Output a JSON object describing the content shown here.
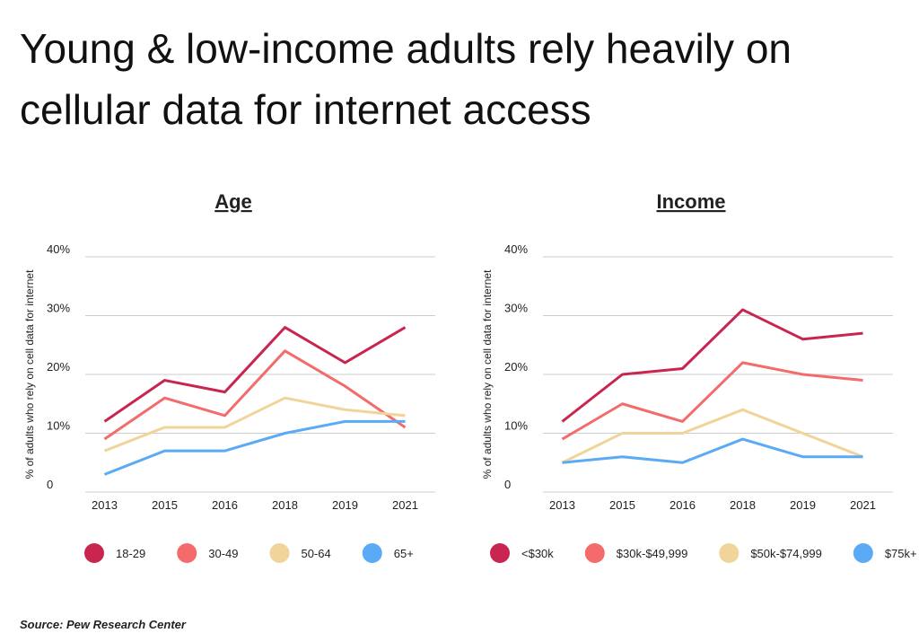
{
  "title": "Young & low-income adults rely heavily on cellular data for internet access",
  "source": "Source:  Pew Research Center",
  "chart_data": [
    {
      "type": "line",
      "title": "Age",
      "y_label": "% of adults who rely on cell data for internet",
      "categories": [
        "2013",
        "2015",
        "2016",
        "2018",
        "2019",
        "2021"
      ],
      "ylim": [
        0,
        40
      ],
      "yticks": [
        {
          "value": 0,
          "label": "0"
        },
        {
          "value": 10,
          "label": "10%"
        },
        {
          "value": 20,
          "label": "20%"
        },
        {
          "value": 30,
          "label": "30%"
        },
        {
          "value": 40,
          "label": "40%"
        }
      ],
      "grid": true,
      "series": [
        {
          "name": "18-29",
          "color": "#c8254f",
          "values": [
            12,
            19,
            17,
            28,
            22,
            28
          ]
        },
        {
          "name": "30-49",
          "color": "#f36b6b",
          "values": [
            9,
            16,
            13,
            24,
            18,
            11
          ]
        },
        {
          "name": "50-64",
          "color": "#f0d49a",
          "values": [
            7,
            11,
            11,
            16,
            14,
            13
          ]
        },
        {
          "name": "65+",
          "color": "#5aaaf5",
          "values": [
            3,
            7,
            7,
            10,
            12,
            12
          ]
        }
      ]
    },
    {
      "type": "line",
      "title": "Income",
      "y_label": "% of adults who rely on cell data for internet",
      "categories": [
        "2013",
        "2015",
        "2016",
        "2018",
        "2019",
        "2021"
      ],
      "ylim": [
        0,
        40
      ],
      "yticks": [
        {
          "value": 0,
          "label": "0"
        },
        {
          "value": 10,
          "label": "10%"
        },
        {
          "value": 20,
          "label": "20%"
        },
        {
          "value": 30,
          "label": "30%"
        },
        {
          "value": 40,
          "label": "40%"
        }
      ],
      "grid": true,
      "series": [
        {
          "name": "<$30k",
          "color": "#c8254f",
          "values": [
            12,
            20,
            21,
            31,
            26,
            27
          ]
        },
        {
          "name": "$30k-$49,999",
          "color": "#f36b6b",
          "values": [
            9,
            15,
            12,
            22,
            20,
            19
          ]
        },
        {
          "name": "$50k-$74,999",
          "color": "#f0d49a",
          "values": [
            5,
            10,
            10,
            14,
            10,
            6
          ]
        },
        {
          "name": "$75k+",
          "color": "#5aaaf5",
          "values": [
            5,
            6,
            5,
            9,
            6,
            6
          ]
        }
      ]
    }
  ]
}
